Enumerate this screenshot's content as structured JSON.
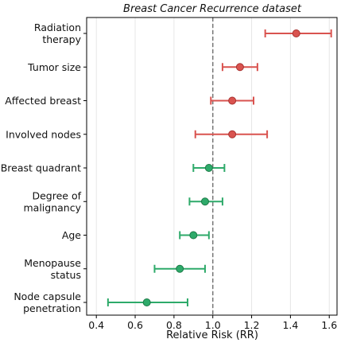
{
  "chart_data": {
    "type": "forest",
    "title": "Breast Cancer Recurrence dataset",
    "xlabel": "Relative Risk (RR)",
    "ylabel": "",
    "xlim": [
      0.35,
      1.64
    ],
    "xticks": [
      0.4,
      0.6,
      0.8,
      1.0,
      1.2,
      1.4,
      1.6
    ],
    "xtick_labels": [
      "0.4",
      "0.6",
      "0.8",
      "1.0",
      "1.2",
      "1.4",
      "1.6"
    ],
    "reference_line": 1.0,
    "grid": "vertical",
    "categories": [
      [
        "Radiation",
        "therapy"
      ],
      [
        "Tumor size"
      ],
      [
        "Affected breast"
      ],
      [
        "Involved nodes"
      ],
      [
        "Breast quadrant"
      ],
      [
        "Degree of",
        "malignancy"
      ],
      [
        "Age"
      ],
      [
        "Menopause",
        "status"
      ],
      [
        "Node capsule",
        "penetration"
      ]
    ],
    "estimates": [
      1.43,
      1.14,
      1.1,
      1.1,
      0.98,
      0.96,
      0.9,
      0.83,
      0.66
    ],
    "ci_lower": [
      1.27,
      1.05,
      0.99,
      0.91,
      0.9,
      0.88,
      0.83,
      0.7,
      0.46
    ],
    "ci_upper": [
      1.61,
      1.23,
      1.21,
      1.28,
      1.06,
      1.05,
      0.98,
      0.96,
      0.87
    ],
    "colors": {
      "risk": "#d9534f",
      "risk_edge": "#a83230",
      "protective": "#2eaa6a",
      "protective_edge": "#1d7a47",
      "reference": "#777777",
      "grid": "#e6e6e6"
    }
  }
}
